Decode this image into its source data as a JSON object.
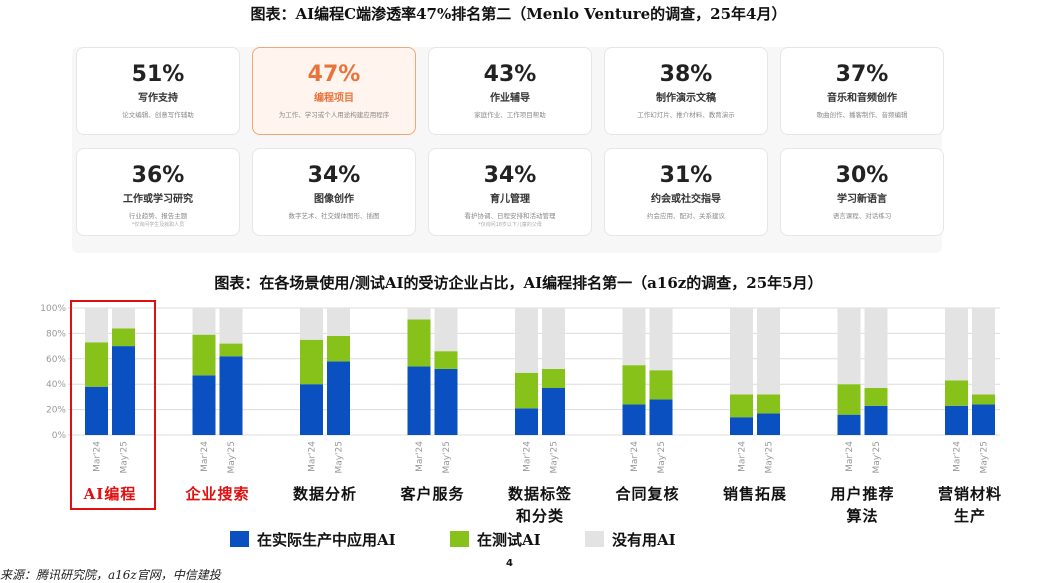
{
  "titles": {
    "top": "图表：AI编程C端渗透率47%排名第二（Menlo Venture的调查，25年4月）",
    "bottom": "图表：在各场景使用/测试AI的受访企业占比，AI编程排名第一（a16z的调查，25年5月）"
  },
  "stat_cards": [
    {
      "pct": "51%",
      "label": "写作支持",
      "desc": "论文编辑、创意写作辅助",
      "note": "",
      "highlight": false
    },
    {
      "pct": "47%",
      "label": "编程项目",
      "desc": "为工作、学习或个人用途构建应用程序",
      "note": "",
      "highlight": true
    },
    {
      "pct": "43%",
      "label": "作业辅导",
      "desc": "家庭作业、工作项目帮助",
      "note": "",
      "highlight": false
    },
    {
      "pct": "38%",
      "label": "制作演示文稿",
      "desc": "工作幻灯片、推介材料、教育演示",
      "note": "",
      "highlight": false
    },
    {
      "pct": "37%",
      "label": "音乐和音频创作",
      "desc": "歌曲创作、播客制作、音频编辑",
      "note": "",
      "highlight": false
    },
    {
      "pct": "36%",
      "label": "工作或学习研究",
      "desc": "行业趋势、报告主题",
      "note": "*仅询问学生及就职人员",
      "highlight": false
    },
    {
      "pct": "34%",
      "label": "图像创作",
      "desc": "数字艺术、社交媒体图形、插图",
      "note": "",
      "highlight": false
    },
    {
      "pct": "34%",
      "label": "育儿管理",
      "desc": "看护协调、日程安排和活动管理",
      "note": "*仅询问18岁以下儿童的父母",
      "highlight": false
    },
    {
      "pct": "31%",
      "label": "约会或社交指导",
      "desc": "约会应用、配对、关系建议",
      "note": "",
      "highlight": false
    },
    {
      "pct": "30%",
      "label": "学习新语言",
      "desc": "语言课程、对话练习",
      "note": "",
      "highlight": false
    }
  ],
  "chart_data": {
    "type": "bar",
    "stacked": true,
    "title": "",
    "ylim": [
      0,
      100
    ],
    "y_ticks": [
      "0%",
      "20%",
      "40%",
      "60%",
      "80%",
      "100%"
    ],
    "grid": true,
    "periods": [
      "Mar'24",
      "May'25"
    ],
    "categories": [
      "AI编程",
      "企业搜索",
      "数据分析",
      "客户服务",
      "数据标签和分类",
      "合同复核",
      "销售拓展",
      "用户推荐算法",
      "营销材料生产"
    ],
    "category_lines": [
      [
        "AI编程"
      ],
      [
        "企业搜索"
      ],
      [
        "数据分析"
      ],
      [
        "客户服务"
      ],
      [
        "数据标签",
        "和分类"
      ],
      [
        "合同复核"
      ],
      [
        "销售拓展"
      ],
      [
        "用户推荐",
        "算法"
      ],
      [
        "营销材料",
        "生产"
      ]
    ],
    "highlighted_categories": [
      "AI编程",
      "企业搜索"
    ],
    "boxed_category": "AI编程",
    "series": [
      {
        "name": "在实际生产中应用AI",
        "color": "#0a50c0",
        "values": [
          [
            38,
            70
          ],
          [
            47,
            62
          ],
          [
            40,
            58
          ],
          [
            54,
            52
          ],
          [
            21,
            37
          ],
          [
            24,
            28
          ],
          [
            14,
            17
          ],
          [
            16,
            23
          ],
          [
            23,
            24
          ]
        ]
      },
      {
        "name": "在测试AI",
        "color": "#86c21a",
        "values": [
          [
            35,
            14
          ],
          [
            32,
            10
          ],
          [
            35,
            20
          ],
          [
            37,
            14
          ],
          [
            28,
            15
          ],
          [
            31,
            23
          ],
          [
            18,
            15
          ],
          [
            24,
            14
          ],
          [
            20,
            8
          ]
        ]
      },
      {
        "name": "没有用AI",
        "color": "#e3e3e3",
        "values": [
          [
            27,
            16
          ],
          [
            21,
            28
          ],
          [
            25,
            22
          ],
          [
            9,
            34
          ],
          [
            51,
            48
          ],
          [
            45,
            49
          ],
          [
            68,
            68
          ],
          [
            60,
            63
          ],
          [
            57,
            68
          ]
        ]
      }
    ],
    "legend_position": "bottom"
  },
  "footer": {
    "page_number": "4",
    "source": "来源：腾讯研究院，a16z官网，中信建投"
  }
}
